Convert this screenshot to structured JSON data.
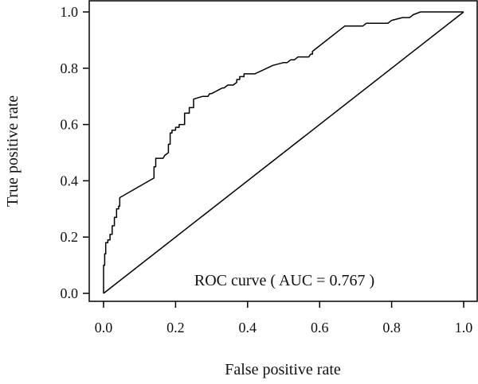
{
  "chart_data": {
    "type": "line",
    "title": "",
    "xlabel": "False positive rate",
    "ylabel": "True positive rate",
    "xlim": [
      0,
      1.02
    ],
    "ylim": [
      0,
      1.02
    ],
    "x_ticks": [
      0.0,
      0.2,
      0.4,
      0.6,
      0.8,
      1.0
    ],
    "y_ticks": [
      0.0,
      0.2,
      0.4,
      0.6,
      0.8,
      1.0
    ],
    "x_tick_labels": [
      "0.0",
      "0.2",
      "0.4",
      "0.6",
      "0.8",
      "1.0"
    ],
    "y_tick_labels": [
      "0.0",
      "0.2",
      "0.4",
      "0.6",
      "0.8",
      "1.0"
    ],
    "grid": false,
    "annotation": "ROC curve ( AUC = 0.767 )",
    "series": [
      {
        "x": [
          0.0,
          0.0,
          0.003,
          0.003,
          0.006,
          0.006,
          0.012,
          0.012,
          0.018,
          0.018,
          0.024,
          0.024,
          0.03,
          0.03,
          0.036,
          0.036,
          0.042,
          0.042,
          0.045,
          0.045,
          0.14,
          0.14,
          0.145,
          0.145,
          0.165,
          0.17,
          0.18,
          0.18,
          0.185,
          0.185,
          0.19,
          0.19,
          0.2,
          0.2,
          0.21,
          0.21,
          0.225,
          0.225,
          0.238,
          0.238,
          0.25,
          0.25,
          0.275,
          0.29,
          0.295,
          0.3,
          0.33,
          0.335,
          0.345,
          0.36,
          0.37,
          0.37,
          0.378,
          0.378,
          0.39,
          0.39,
          0.4,
          0.42,
          0.47,
          0.5,
          0.51,
          0.52,
          0.53,
          0.54,
          0.54,
          0.57,
          0.575,
          0.58,
          0.58,
          0.67,
          0.72,
          0.73,
          0.75,
          0.76,
          0.79,
          0.8,
          0.83,
          0.85,
          0.86,
          0.88,
          1.0
        ],
        "y": [
          0.0,
          0.1,
          0.1,
          0.14,
          0.14,
          0.18,
          0.18,
          0.19,
          0.19,
          0.21,
          0.21,
          0.24,
          0.24,
          0.27,
          0.27,
          0.3,
          0.3,
          0.31,
          0.31,
          0.34,
          0.41,
          0.45,
          0.45,
          0.48,
          0.48,
          0.49,
          0.5,
          0.53,
          0.53,
          0.57,
          0.57,
          0.58,
          0.58,
          0.59,
          0.59,
          0.6,
          0.6,
          0.64,
          0.64,
          0.66,
          0.66,
          0.69,
          0.7,
          0.7,
          0.71,
          0.71,
          0.73,
          0.73,
          0.74,
          0.74,
          0.75,
          0.76,
          0.76,
          0.77,
          0.77,
          0.78,
          0.78,
          0.78,
          0.81,
          0.82,
          0.82,
          0.83,
          0.83,
          0.84,
          0.84,
          0.84,
          0.85,
          0.85,
          0.86,
          0.95,
          0.95,
          0.96,
          0.96,
          0.96,
          0.96,
          0.97,
          0.98,
          0.98,
          0.99,
          1.0,
          1.0
        ],
        "color": "#000000"
      },
      {
        "x": [
          0.0,
          1.0
        ],
        "y": [
          0.0,
          1.0
        ],
        "color": "#000000"
      }
    ]
  }
}
